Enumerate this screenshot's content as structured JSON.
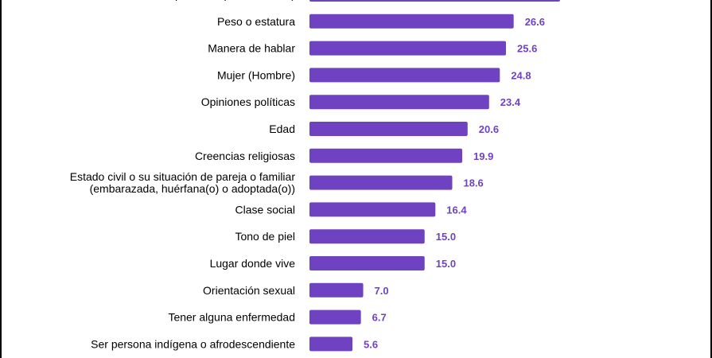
{
  "chart_data": {
    "type": "bar",
    "orientation": "horizontal",
    "categories": [
      [
        "forma de peinarse, perforaciones)"
      ],
      [
        "Peso o estatura"
      ],
      [
        "Manera de hablar"
      ],
      [
        "Mujer (Hombre)"
      ],
      [
        "Opiniones políticas"
      ],
      [
        "Edad"
      ],
      [
        "Creencias religiosas"
      ],
      [
        "Estado civil o su situación de pareja o familiar",
        "(embarazada, huérfana(o) o adoptada(o))"
      ],
      [
        "Clase social"
      ],
      [
        "Tono de piel"
      ],
      [
        "Lugar donde vive"
      ],
      [
        "Orientación sexual"
      ],
      [
        "Tener alguna enfermedad"
      ],
      [
        "Ser persona indígena o afrodescendiente"
      ]
    ],
    "values": [
      null,
      26.6,
      25.6,
      24.8,
      23.4,
      20.6,
      19.9,
      18.6,
      16.4,
      15.0,
      15.0,
      7.0,
      6.7,
      5.6
    ],
    "value_labels": [
      "",
      "26.6",
      "25.6",
      "24.8",
      "23.4",
      "20.6",
      "19.9",
      "18.6",
      "16.4",
      "15.0",
      "15.0",
      "7.0",
      "6.7",
      "5.6"
    ],
    "first_bar_fraction_of_max": 1.0,
    "title": "",
    "xlabel": "",
    "ylabel": "",
    "grid": false,
    "legend": "none",
    "bar_color": "#6f42c1",
    "value_label_color": "#6f42c1",
    "text_color": "#000000",
    "frame_color": "#000000"
  }
}
